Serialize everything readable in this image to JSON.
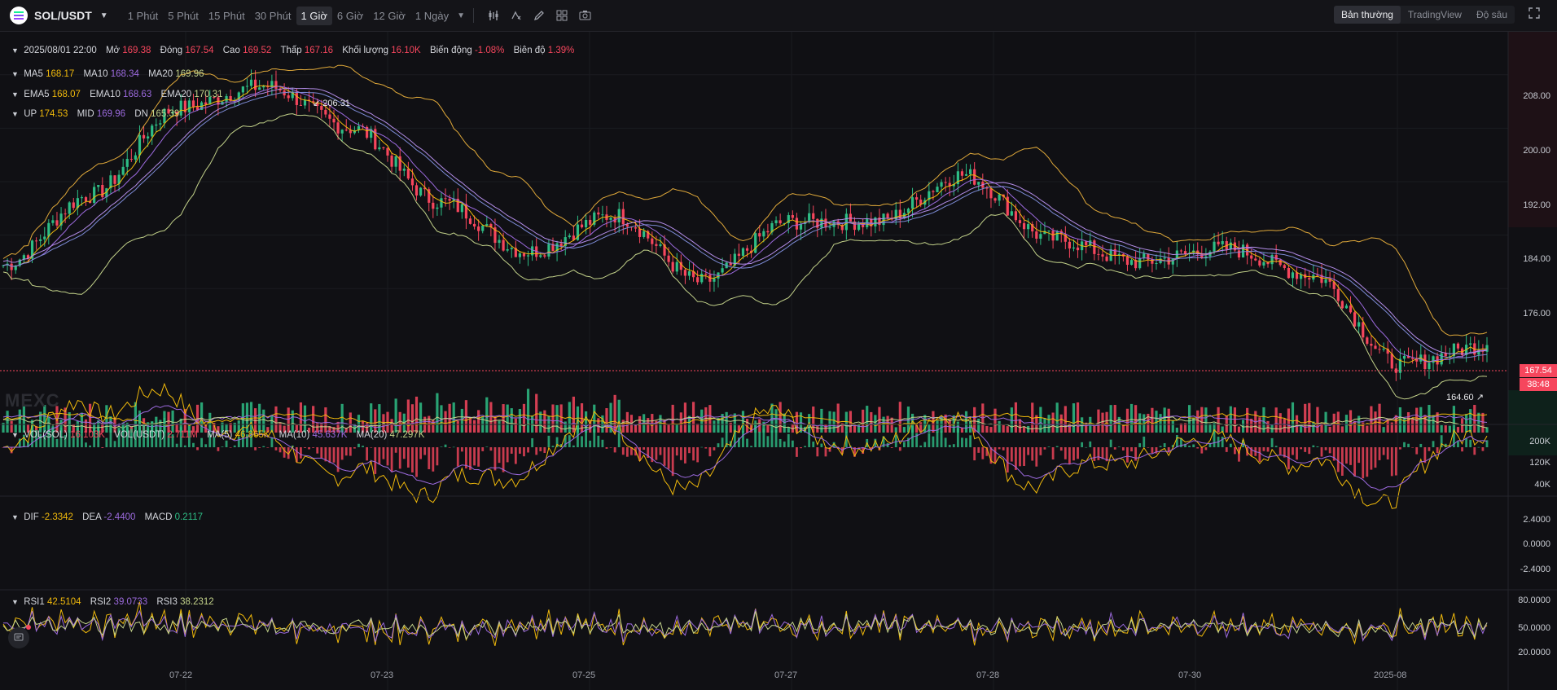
{
  "header": {
    "symbol": "SOL/USDT",
    "intervals": [
      "1 Phút",
      "5 Phút",
      "15 Phút",
      "30 Phút",
      "1 Giờ",
      "6 Giờ",
      "12 Giờ",
      "1 Ngày"
    ],
    "active_interval": "1 Giờ",
    "views": [
      "Bản thường",
      "TradingView",
      "Độ sâu"
    ],
    "active_view": "Bản thường",
    "tool_icons": [
      "indicator-icon",
      "formula-icon",
      "pencil-icon",
      "layout-icon",
      "camera-icon"
    ]
  },
  "ohlc": {
    "datetime": "2025/08/01 22:00",
    "open_label": "Mở",
    "open": "169.38",
    "close_label": "Đóng",
    "close": "167.54",
    "high_label": "Cao",
    "high": "169.52",
    "low_label": "Thấp",
    "low": "167.16",
    "vol_label": "Khối lượng",
    "vol": "16.10K",
    "change_label": "Biến động",
    "change": "-1.08%",
    "amp_label": "Biên độ",
    "amp": "1.39%"
  },
  "ma": {
    "ma5_label": "MA5",
    "ma5": "168.17",
    "ma10_label": "MA10",
    "ma10": "168.34",
    "ma20_label": "MA20",
    "ma20": "169.96"
  },
  "ema": {
    "ema5_label": "EMA5",
    "ema5": "168.07",
    "ema10_label": "EMA10",
    "ema10": "168.63",
    "ema20_label": "EMA20",
    "ema20": "170.31"
  },
  "boll": {
    "up_label": "UP",
    "up": "174.53",
    "mid_label": "MID",
    "mid": "169.96",
    "dn_label": "DN",
    "dn": "165.39"
  },
  "volume": {
    "vol_sol_label": "VOL(SOL)",
    "vol_sol": "16.103K",
    "vol_usdt_label": "VOL(USDT)",
    "vol_usdt": "2.711M",
    "ma5_label": "MA(5)",
    "ma5": "46.865K",
    "ma10_label": "MA(10)",
    "ma10": "45.637K",
    "ma20_label": "MA(20)",
    "ma20": "47.297K"
  },
  "macd": {
    "dif_label": "DIF",
    "dif": "-2.3342",
    "dea_label": "DEA",
    "dea": "-2.4400",
    "macd_label": "MACD",
    "macd": "0.2117"
  },
  "rsi": {
    "rsi1_label": "RSI1",
    "rsi1": "42.5104",
    "rsi2_label": "RSI2",
    "rsi2": "39.0733",
    "rsi3_label": "RSI3",
    "rsi3": "38.2312"
  },
  "price_axis": [
    "208.00",
    "200.00",
    "192.00",
    "184.00",
    "176.00"
  ],
  "volume_axis": [
    "200K",
    "120K",
    "40K"
  ],
  "macd_axis": [
    "2.4000",
    "0.0000",
    "-2.4000"
  ],
  "rsi_axis": [
    "80.0000",
    "50.0000",
    "20.0000"
  ],
  "date_axis": [
    "07-22",
    "07-23",
    "07-25",
    "07-27",
    "07-28",
    "07-30",
    "2025-08"
  ],
  "last_price": {
    "price": "167.54",
    "countdown": "38:48"
  },
  "high_callout": "206.31",
  "low_callout": "164.60",
  "watermark": "MEXC",
  "colors": {
    "up": "#2ebd85",
    "down": "#f6465d",
    "ma5": "#f0b90b",
    "ma10": "#9c6ade",
    "ma20": "#c3d28a",
    "boll": "#e0a93a"
  },
  "chart_data": {
    "type": "candlestick",
    "interval": "1 Giờ",
    "price_range": [
      162,
      212
    ],
    "key_points": [
      {
        "x": "07-21",
        "close": 179.5
      },
      {
        "x": "07-22",
        "close": 190.0
      },
      {
        "x": "07-22",
        "close": 203.0
      },
      {
        "x": "07-22",
        "close": 206.31
      },
      {
        "x": "07-23",
        "close": 200.0
      },
      {
        "x": "07-23",
        "close": 189.0
      },
      {
        "x": "07-24",
        "close": 181.5
      },
      {
        "x": "07-24",
        "close": 187.0
      },
      {
        "x": "07-25",
        "close": 177.0
      },
      {
        "x": "07-26",
        "close": 186.0
      },
      {
        "x": "07-27",
        "close": 186.0
      },
      {
        "x": "07-28",
        "close": 193.0
      },
      {
        "x": "07-29",
        "close": 183.5
      },
      {
        "x": "07-30",
        "close": 180.0
      },
      {
        "x": "07-31",
        "close": 182.0
      },
      {
        "x": "08-01",
        "close": 178.0
      },
      {
        "x": "08-01",
        "close": 164.6
      },
      {
        "x": "08-01",
        "close": 167.54
      }
    ]
  }
}
